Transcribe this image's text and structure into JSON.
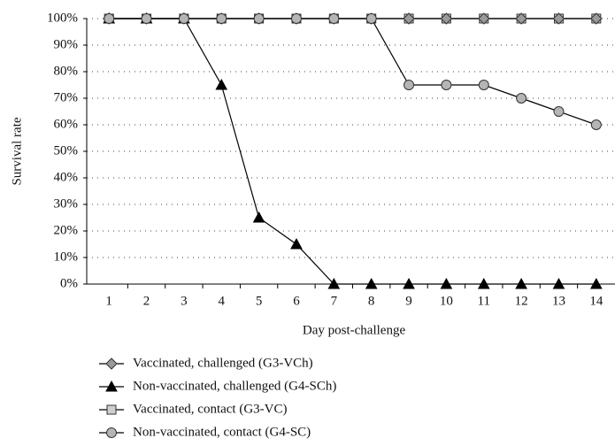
{
  "chart_data": {
    "type": "line",
    "x_label": "Day post-challenge",
    "y_label": "Survival rate",
    "categories": [
      "1",
      "2",
      "3",
      "4",
      "5",
      "6",
      "7",
      "8",
      "9",
      "10",
      "11",
      "12",
      "13",
      "14"
    ],
    "ylim": [
      0,
      100
    ],
    "yticks": [
      {
        "value": 0,
        "label": "0%"
      },
      {
        "value": 10,
        "label": "10%"
      },
      {
        "value": 20,
        "label": "20%"
      },
      {
        "value": 30,
        "label": "30%"
      },
      {
        "value": 40,
        "label": "40%"
      },
      {
        "value": 50,
        "label": "50%"
      },
      {
        "value": 60,
        "label": "60%"
      },
      {
        "value": 70,
        "label": "70%"
      },
      {
        "value": 80,
        "label": "80%"
      },
      {
        "value": 90,
        "label": "90%"
      },
      {
        "value": 100,
        "label": "100%"
      }
    ],
    "grid": true,
    "legend": "bottom",
    "series": [
      {
        "name": "Vaccinated, challenged (G3-VCh)",
        "marker": "diamond",
        "color": "#9a9a9a",
        "values": [
          100,
          100,
          100,
          100,
          100,
          100,
          100,
          100,
          100,
          100,
          100,
          100,
          100,
          100
        ]
      },
      {
        "name": "Non-vaccinated, challenged (G4-SCh)",
        "marker": "triangle",
        "color": "#000000",
        "values": [
          100,
          100,
          100,
          75,
          25,
          15,
          0,
          0,
          0,
          0,
          0,
          0,
          0,
          0
        ]
      },
      {
        "name": "Vaccinated, contact (G3-VC)",
        "marker": "square",
        "color": "#cfcfcf",
        "values": [
          100,
          100,
          100,
          100,
          100,
          100,
          100,
          100,
          100,
          100,
          100,
          100,
          100,
          100
        ]
      },
      {
        "name": "Non-vaccinated, contact (G4-SC)",
        "marker": "circle",
        "color": "#b5b5b5",
        "values": [
          100,
          100,
          100,
          100,
          100,
          100,
          100,
          100,
          75,
          75,
          75,
          70,
          65,
          60
        ]
      }
    ]
  }
}
